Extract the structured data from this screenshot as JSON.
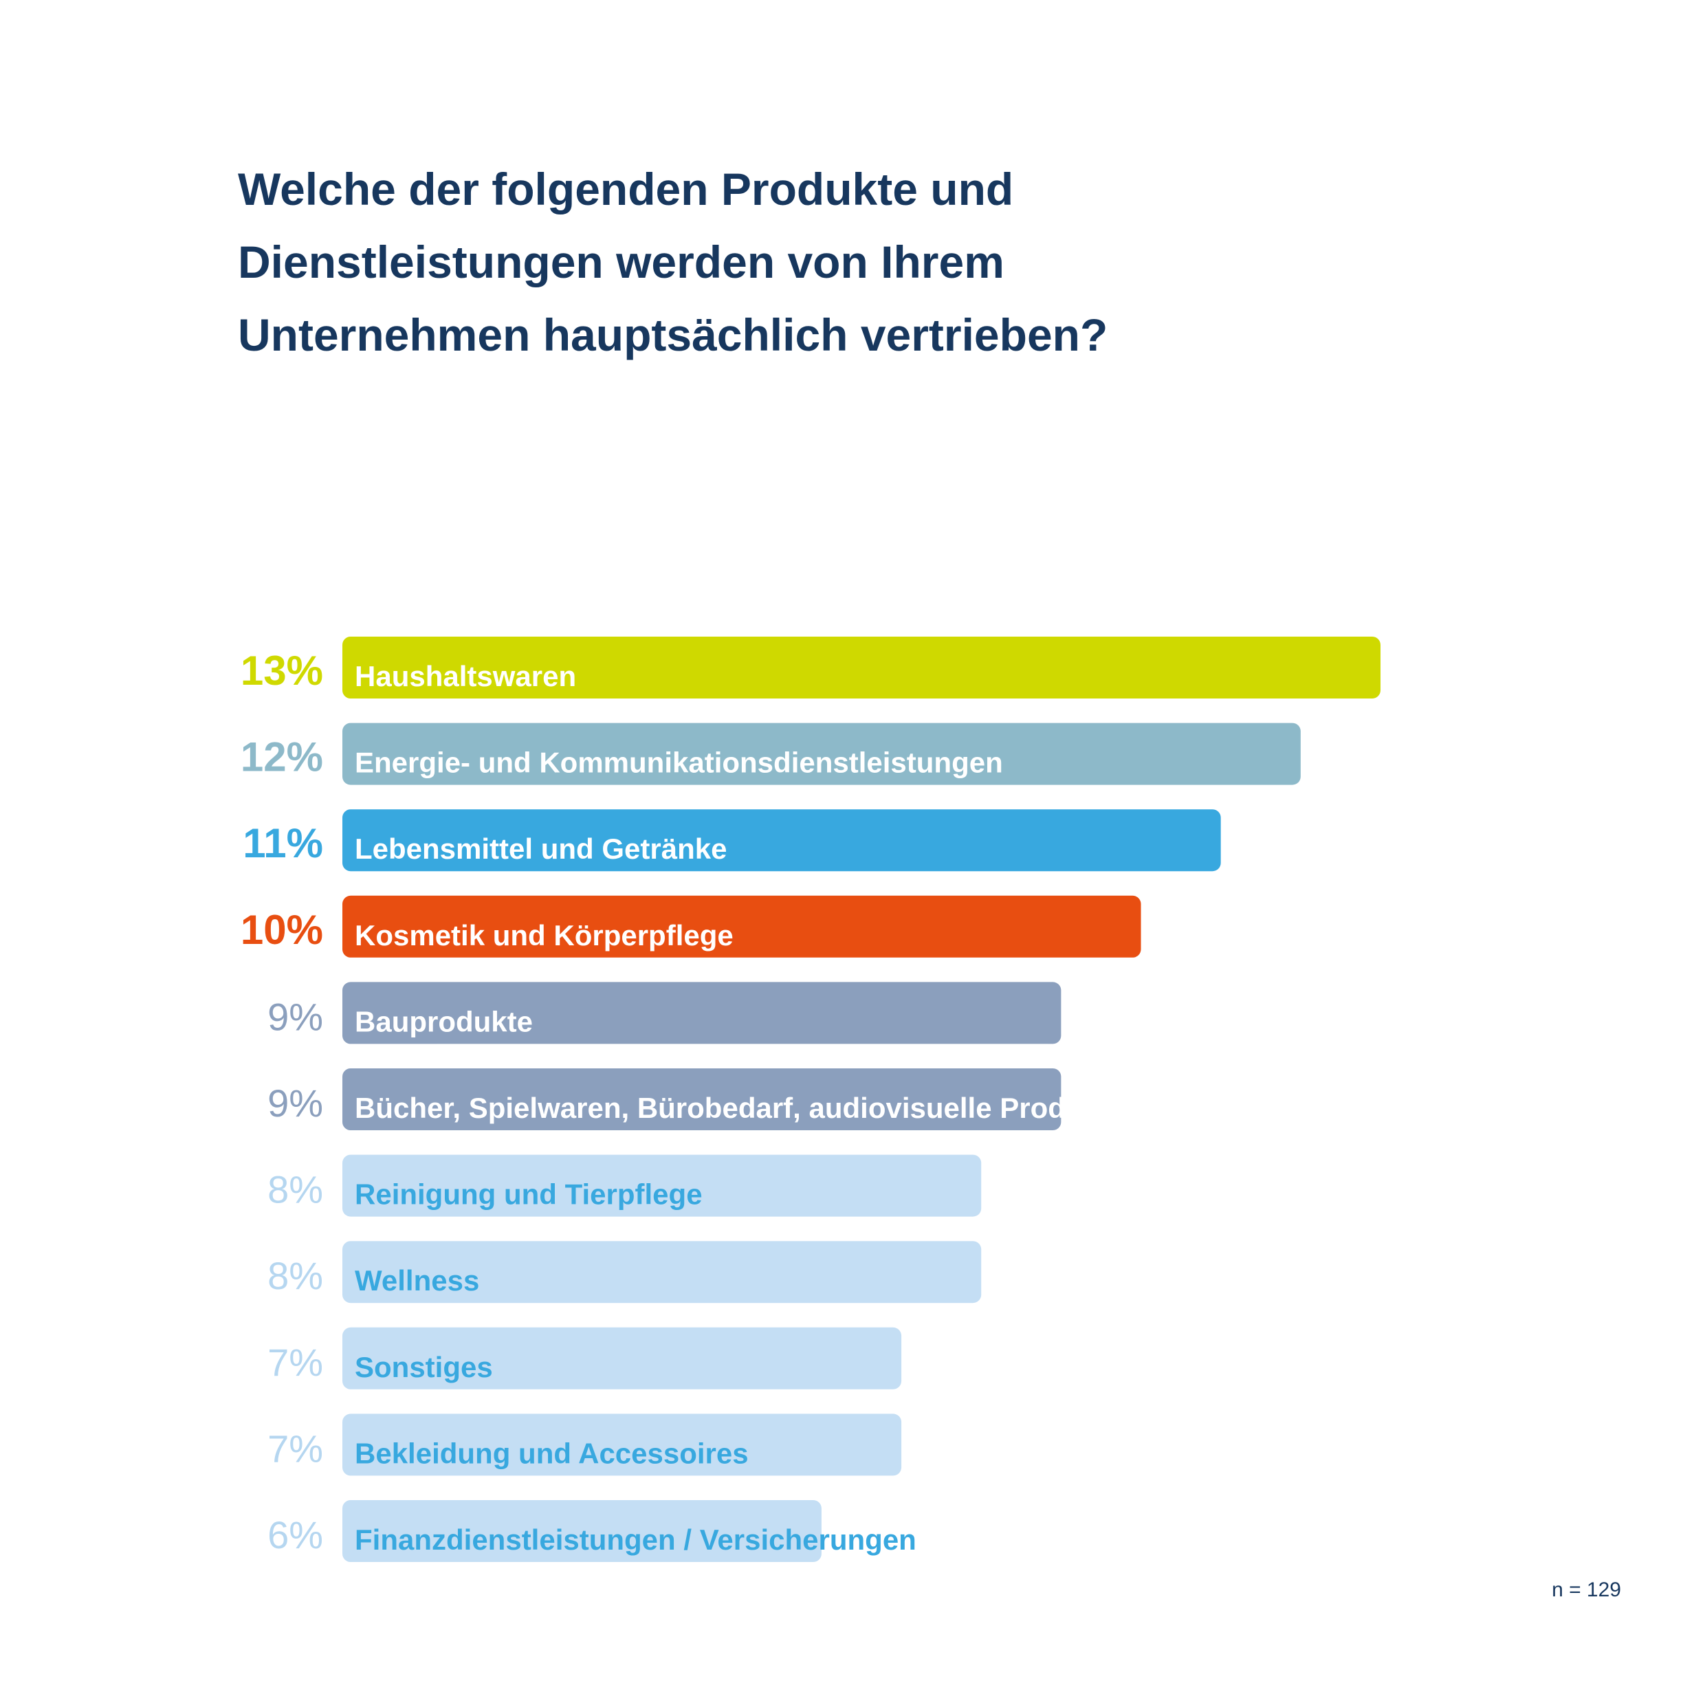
{
  "title": {
    "line1": "Welche der folgenden Produkte und",
    "line2": "Dienstleistungen werden von Ihrem",
    "line3": "Unternehmen hauptsächlich vertrieben?"
  },
  "sample_size": "n = 129",
  "chart_data": {
    "type": "bar",
    "orientation": "horizontal",
    "title": "Welche der folgenden Produkte und Dienstleistungen werden von Ihrem Unternehmen hauptsächlich vertrieben?",
    "unit": "%",
    "xlim": [
      0,
      13
    ],
    "grid": false,
    "legend": "none",
    "note": "n = 129",
    "items": [
      {
        "label": "Haushaltswaren",
        "value": 13,
        "value_label": "13%",
        "bar_color": "#cfd900",
        "text_color": "#ffffff",
        "value_color": "#cfd900"
      },
      {
        "label": "Energie- und Kommunikationsdienstleistungen",
        "value": 12,
        "value_label": "12%",
        "bar_color": "#8db9c9",
        "text_color": "#ffffff",
        "value_color": "#8db9c9"
      },
      {
        "label": "Lebensmittel und Getränke",
        "value": 11,
        "value_label": "11%",
        "bar_color": "#38a8df",
        "text_color": "#ffffff",
        "value_color": "#38a8df"
      },
      {
        "label": "Kosmetik und Körperpflege",
        "value": 10,
        "value_label": "10%",
        "bar_color": "#e84e11",
        "text_color": "#ffffff",
        "value_color": "#e84e11"
      },
      {
        "label": "Bauprodukte",
        "value": 9,
        "value_label": "9%",
        "bar_color": "#8b9fbd",
        "text_color": "#ffffff",
        "value_color": "#8b9fbd"
      },
      {
        "label": "Bücher, Spielwaren, Bürobedarf, audiovisuelle Produkte",
        "value": 9,
        "value_label": "9%",
        "bar_color": "#8b9fbd",
        "text_color": "#ffffff",
        "value_color": "#8b9fbd"
      },
      {
        "label": "Reinigung und Tierpflege",
        "value": 8,
        "value_label": "8%",
        "bar_color": "#c4def4",
        "text_color": "#38a8df",
        "value_color": "#b5d6f0"
      },
      {
        "label": "Wellness",
        "value": 8,
        "value_label": "8%",
        "bar_color": "#c4def4",
        "text_color": "#38a8df",
        "value_color": "#b5d6f0"
      },
      {
        "label": "Sonstiges",
        "value": 7,
        "value_label": "7%",
        "bar_color": "#c4def4",
        "text_color": "#38a8df",
        "value_color": "#b5d6f0"
      },
      {
        "label": "Bekleidung und Accessoires",
        "value": 7,
        "value_label": "7%",
        "bar_color": "#c4def4",
        "text_color": "#38a8df",
        "value_color": "#b5d6f0"
      },
      {
        "label": "Finanzdienstleistungen / Versicherungen",
        "value": 6,
        "value_label": "6%",
        "bar_color": "#c4def4",
        "text_color": "#38a8df",
        "value_color": "#b5d6f0"
      }
    ]
  }
}
